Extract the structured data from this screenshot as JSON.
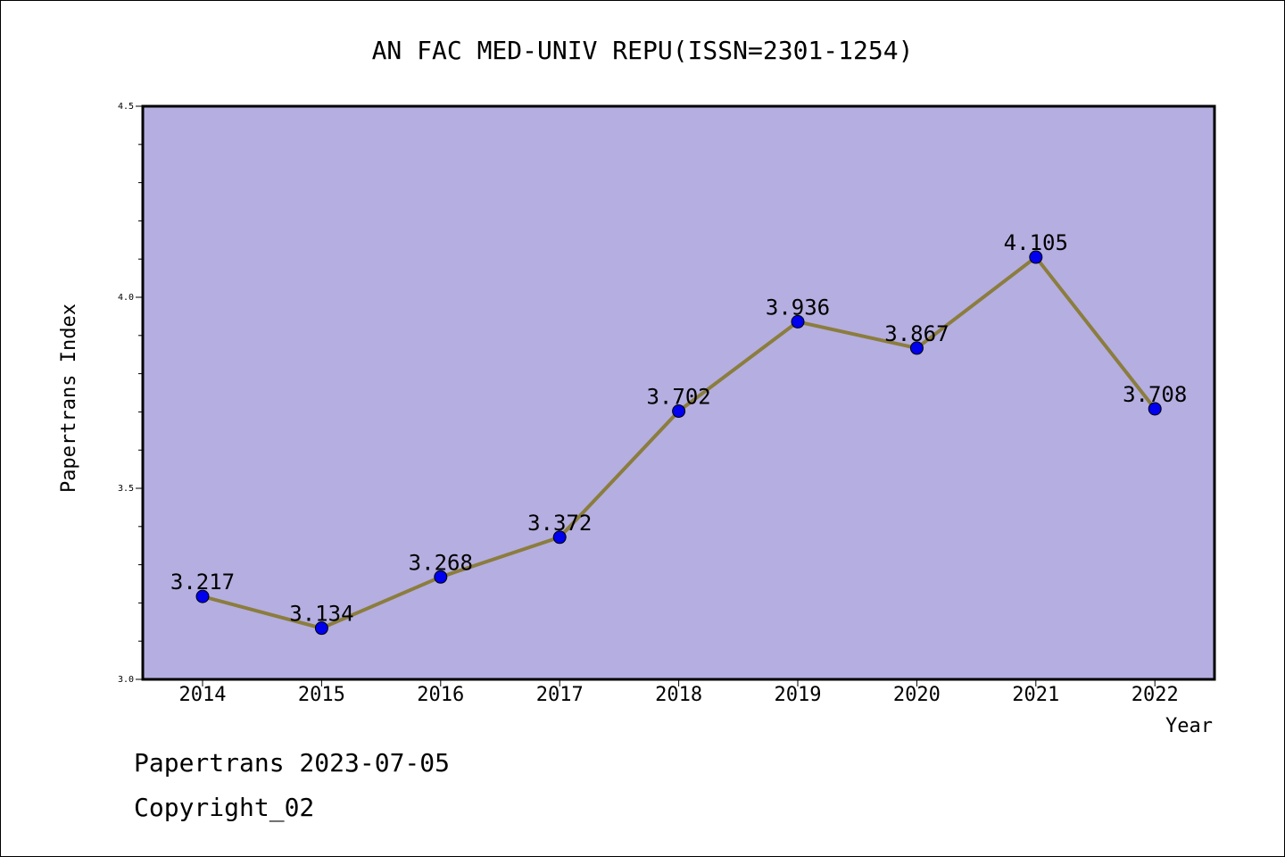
{
  "chart_data": {
    "type": "line",
    "title": "AN FAC MED-UNIV REPU(ISSN=2301-1254)",
    "xlabel": "Year",
    "ylabel": "Papertrans Index",
    "categories": [
      "2014",
      "2015",
      "2016",
      "2017",
      "2018",
      "2019",
      "2020",
      "2021",
      "2022"
    ],
    "series": [
      {
        "values": [
          3.217,
          3.134,
          3.268,
          3.372,
          3.702,
          3.936,
          3.867,
          4.105,
          3.708
        ],
        "labels": [
          "3.217",
          "3.134",
          "3.268",
          "3.372",
          "3.702",
          "3.936",
          "3.867",
          "4.105",
          "3.708"
        ]
      }
    ],
    "ylim": [
      3.0,
      4.5
    ],
    "yticks": [
      "3.0",
      "3.5",
      "4.0",
      "4.5"
    ],
    "grid": false,
    "colors": {
      "plot_background": "#b5aee1",
      "line": "#8b7d3d",
      "marker": "#0000ee"
    }
  },
  "footer": {
    "line1": "Papertrans 2023-07-05",
    "line2": "Copyright_02"
  }
}
